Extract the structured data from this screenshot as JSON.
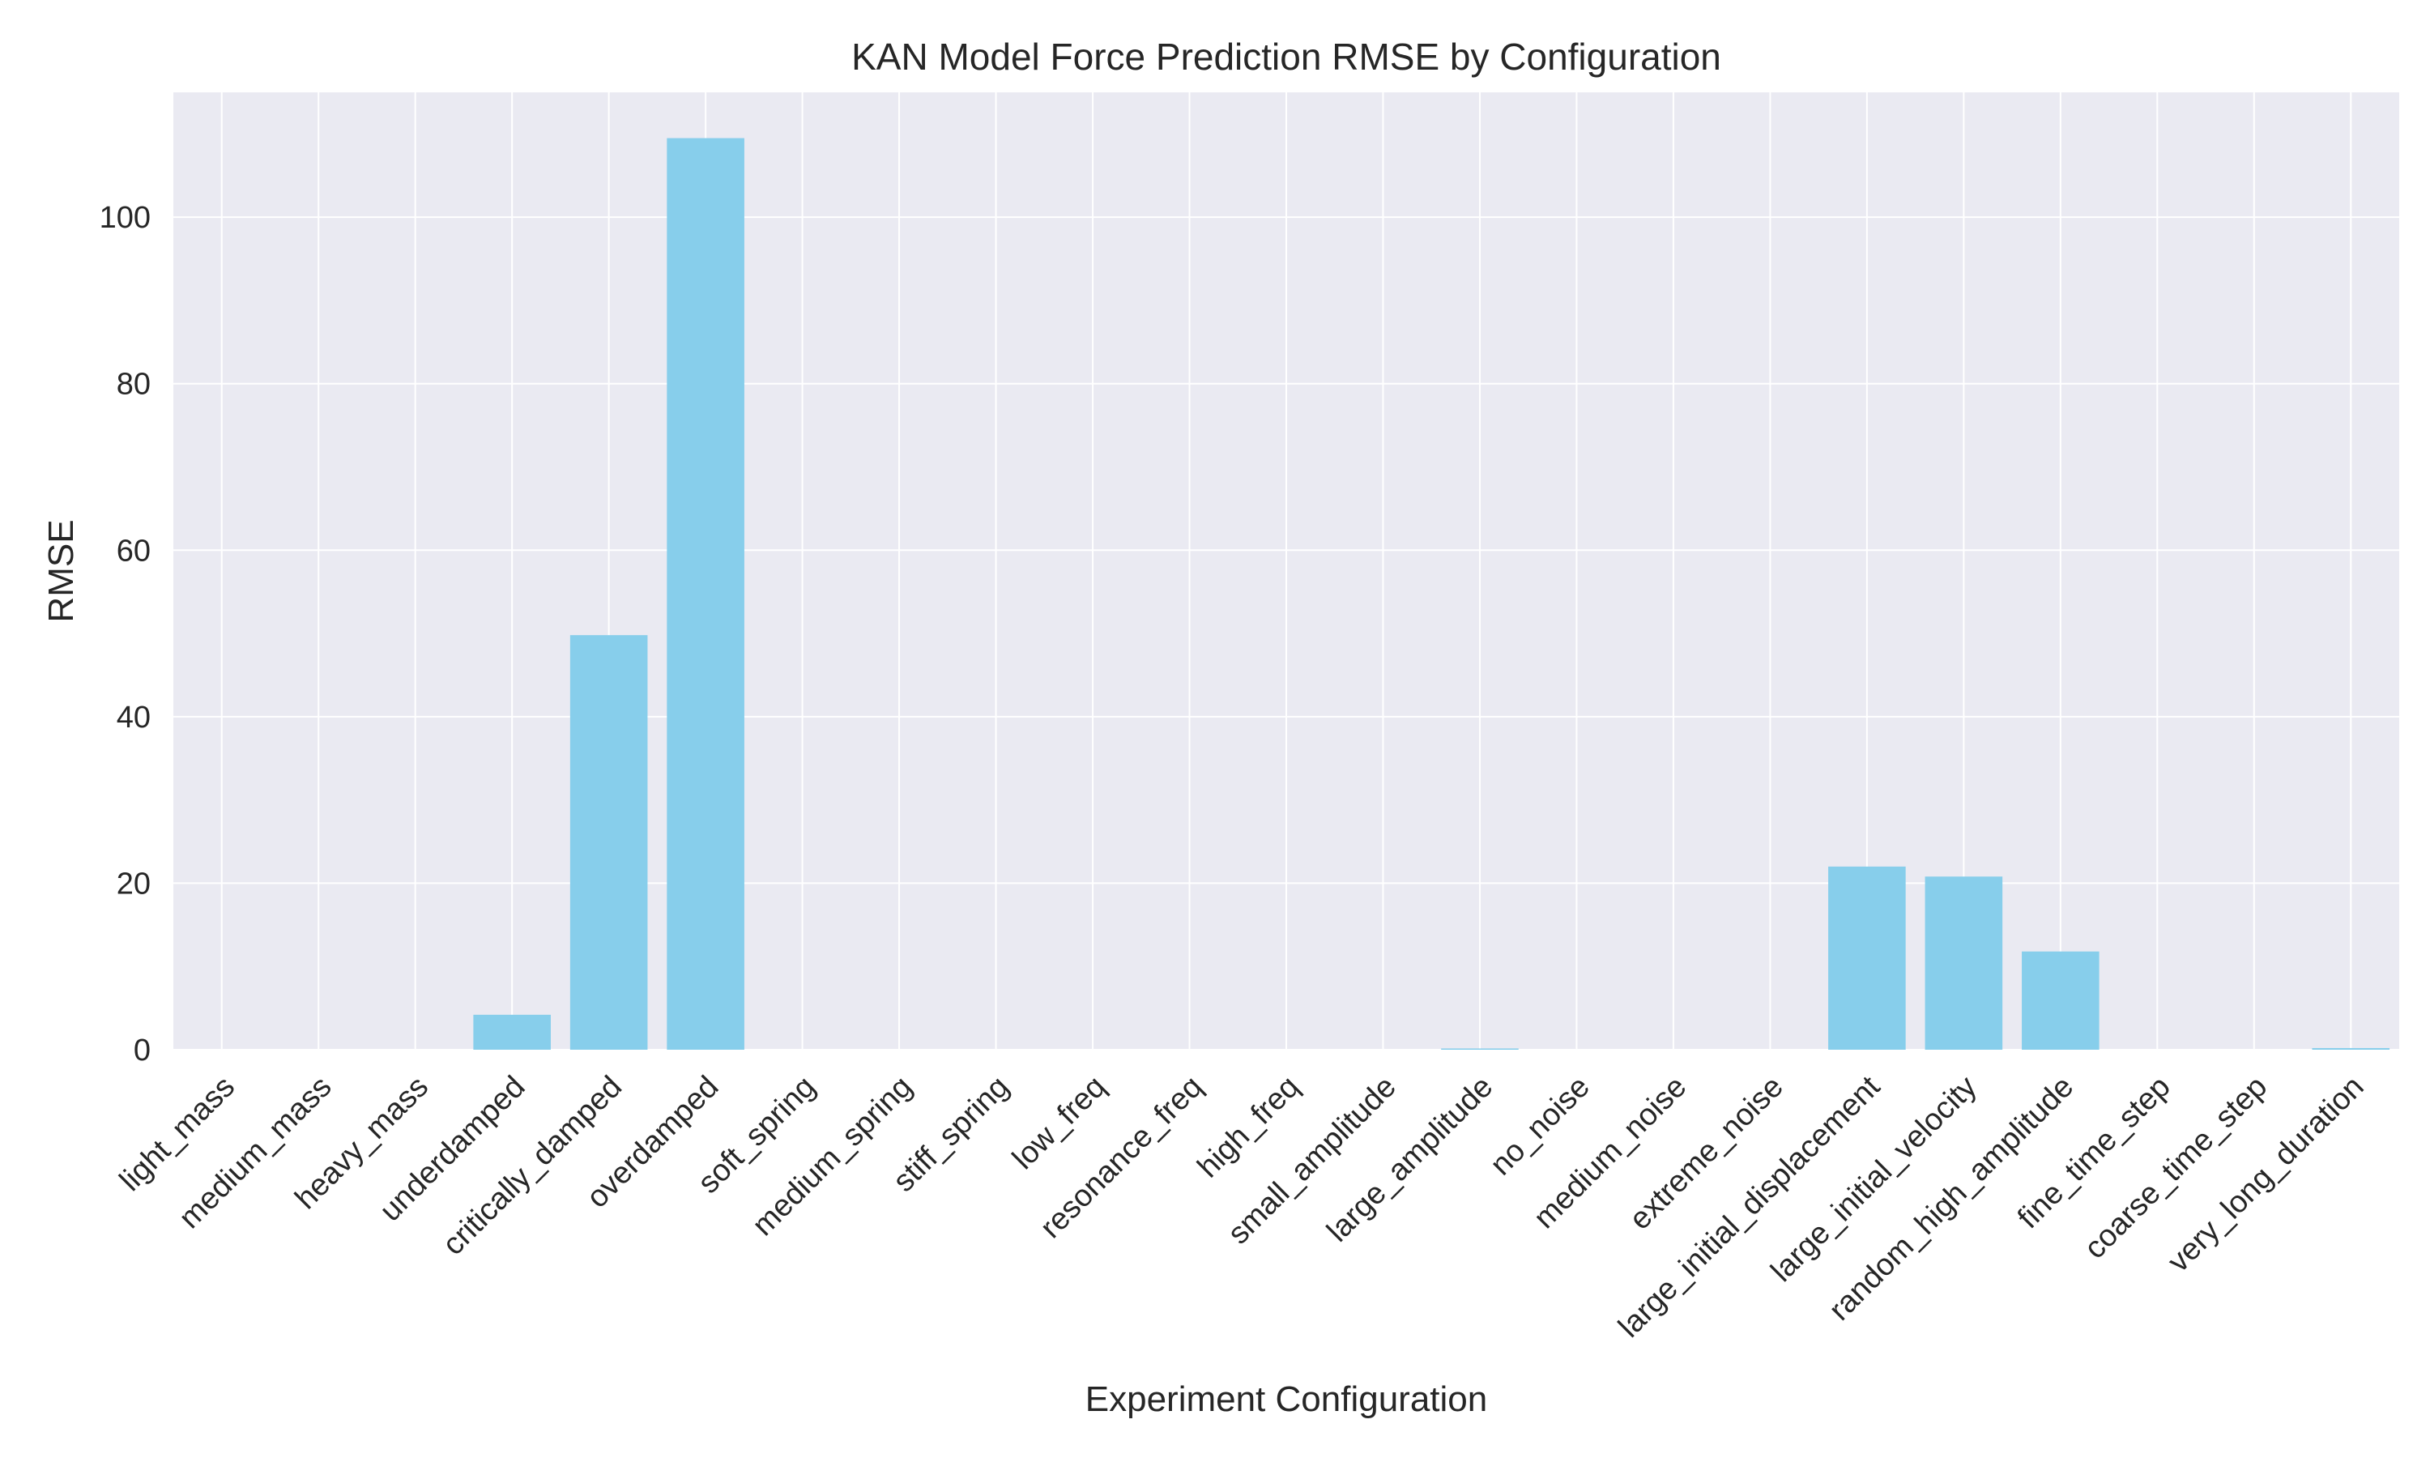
{
  "chart_data": {
    "type": "bar",
    "title": "KAN Model Force Prediction RMSE by Configuration",
    "xlabel": "Experiment Configuration",
    "ylabel": "RMSE",
    "ylim": [
      0,
      115
    ],
    "yticks": [
      0,
      20,
      40,
      60,
      80,
      100
    ],
    "grid": true,
    "bar_color": "#87CEEB",
    "background_color": "#EAEAF2",
    "categories": [
      "light_mass",
      "medium_mass",
      "heavy_mass",
      "underdamped",
      "critically_damped",
      "overdamped",
      "soft_spring",
      "medium_spring",
      "stiff_spring",
      "low_freq",
      "resonance_freq",
      "high_freq",
      "small_amplitude",
      "large_amplitude",
      "no_noise",
      "medium_noise",
      "extreme_noise",
      "large_initial_displacement",
      "large_initial_velocity",
      "random_high_amplitude",
      "fine_time_step",
      "coarse_time_step",
      "very_long_duration"
    ],
    "values": [
      0,
      0,
      0,
      4.2,
      49.8,
      109.5,
      0,
      0,
      0,
      0,
      0,
      0,
      0,
      0.15,
      0,
      0,
      0,
      22,
      20.8,
      11.8,
      0,
      0,
      0.2
    ]
  }
}
